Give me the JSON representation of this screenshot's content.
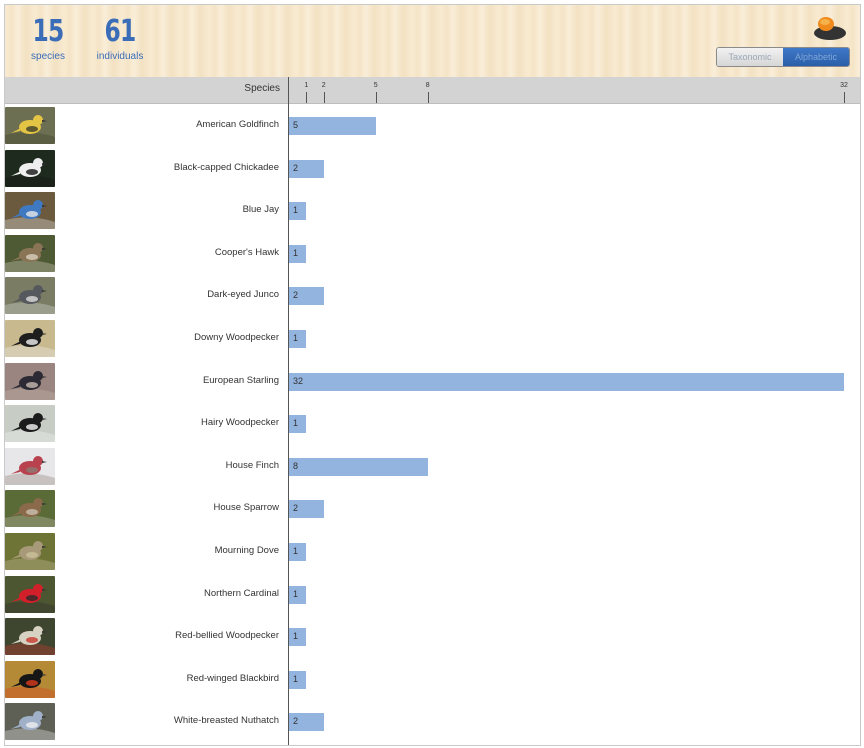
{
  "summary": {
    "species_count": "15",
    "species_label": "species",
    "individuals_count": "61",
    "individuals_label": "individuals"
  },
  "sort_toggle": {
    "options": [
      "Taxonomic",
      "Alphabetic"
    ],
    "selected": "Alphabetic"
  },
  "table": {
    "species_header": "Species",
    "axis_ticks": [
      1,
      2,
      5,
      8,
      32
    ],
    "axis_max": 32
  },
  "rows": [
    {
      "name": "American Goldfinch",
      "count": 5,
      "colors": [
        "#6d6f52",
        "#e3c445",
        "#3d3f2a"
      ]
    },
    {
      "name": "Black-capped Chickadee",
      "count": 2,
      "colors": [
        "#1e2a1e",
        "#eeeeee",
        "#141414"
      ]
    },
    {
      "name": "Blue Jay",
      "count": 1,
      "colors": [
        "#6b5a3e",
        "#3f79c2",
        "#e8e8e8"
      ]
    },
    {
      "name": "Cooper's Hawk",
      "count": 1,
      "colors": [
        "#4e5a34",
        "#8a7456",
        "#d8d0bf"
      ]
    },
    {
      "name": "Dark-eyed Junco",
      "count": 2,
      "colors": [
        "#7a7d63",
        "#55585c",
        "#dcdcdc"
      ]
    },
    {
      "name": "Downy Woodpecker",
      "count": 1,
      "colors": [
        "#c8b98f",
        "#1e1e1e",
        "#f0f0f0"
      ]
    },
    {
      "name": "European Starling",
      "count": 32,
      "colors": [
        "#9a8580",
        "#2c2b35",
        "#c9bbb0"
      ]
    },
    {
      "name": "Hairy Woodpecker",
      "count": 1,
      "colors": [
        "#c7ccc5",
        "#1b1b1b",
        "#f5f5f5"
      ]
    },
    {
      "name": "House Finch",
      "count": 8,
      "colors": [
        "#e7e7ea",
        "#b8434f",
        "#8b7a72"
      ]
    },
    {
      "name": "House Sparrow",
      "count": 2,
      "colors": [
        "#5a6b38",
        "#8a6a4a",
        "#c9c1b0"
      ]
    },
    {
      "name": "Mourning Dove",
      "count": 1,
      "colors": [
        "#6e7436",
        "#a89a78",
        "#c9c09a"
      ]
    },
    {
      "name": "Northern Cardinal",
      "count": 1,
      "colors": [
        "#4c5631",
        "#d2202b",
        "#2a2a2a"
      ]
    },
    {
      "name": "Red-bellied Woodpecker",
      "count": 1,
      "colors": [
        "#3f4630",
        "#d7d2c2",
        "#c8392c"
      ]
    },
    {
      "name": "Red-winged Blackbird",
      "count": 1,
      "colors": [
        "#b58a36",
        "#161616",
        "#d93a1d"
      ]
    },
    {
      "name": "White-breasted Nuthatch",
      "count": 2,
      "colors": [
        "#5e6055",
        "#9fb0c8",
        "#efefef"
      ]
    }
  ]
}
